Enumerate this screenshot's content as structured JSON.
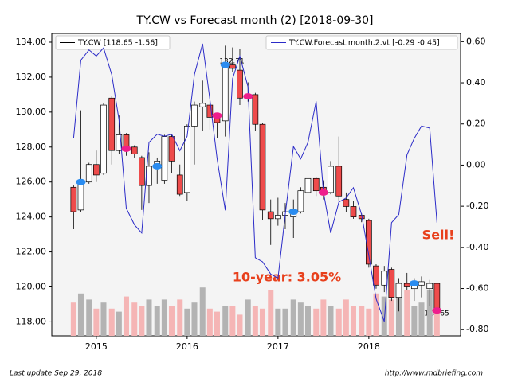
{
  "chart_data": {
    "type": "candlestick",
    "title": "TY.CW vs Forecast month (2)  [2018-09-30]",
    "x": [
      2014.75,
      2014.83,
      2014.92,
      2015,
      2015.08,
      2015.17,
      2015.25,
      2015.33,
      2015.42,
      2015.5,
      2015.58,
      2015.67,
      2015.75,
      2015.83,
      2015.92,
      2016,
      2016.08,
      2016.17,
      2016.25,
      2016.33,
      2016.42,
      2016.5,
      2016.58,
      2016.67,
      2016.75,
      2016.83,
      2016.92,
      2017,
      2017.08,
      2017.17,
      2017.25,
      2017.33,
      2017.42,
      2017.5,
      2017.58,
      2017.67,
      2017.75,
      2017.83,
      2017.92,
      2018,
      2018.08,
      2018.17,
      2018.25,
      2018.33,
      2018.42,
      2018.5,
      2018.58,
      2018.67,
      2018.75
    ],
    "xlim": [
      2014.51,
      2019.01
    ],
    "xticks": [
      2015,
      2016,
      2017,
      2018
    ],
    "ylim": [
      117.2,
      134.5
    ],
    "yticks": [
      {
        "value": 118,
        "label": "118.00"
      },
      {
        "value": 120,
        "label": "120.00"
      },
      {
        "value": 122,
        "label": "122.00"
      },
      {
        "value": 124,
        "label": "124.00"
      },
      {
        "value": 126,
        "label": "126.00"
      },
      {
        "value": 128,
        "label": "128.00"
      },
      {
        "value": 130,
        "label": "130.00"
      },
      {
        "value": 132,
        "label": "132.00"
      },
      {
        "value": 134,
        "label": "134.00"
      }
    ],
    "y2lim": [
      -0.83,
      0.64
    ],
    "y2ticks": [
      {
        "value": 0.6,
        "label": "0.60"
      },
      {
        "value": 0.4,
        "label": "0.40"
      },
      {
        "value": 0.2,
        "label": "0.20"
      },
      {
        "value": 0,
        "label": "0.00"
      },
      {
        "value": -0.2,
        "label": "-0.20"
      },
      {
        "value": -0.4,
        "label": "-0.40"
      },
      {
        "value": -0.6,
        "label": "-0.60"
      },
      {
        "value": -0.8,
        "label": "-0.80"
      }
    ],
    "series": [
      {
        "name": "TY.CW [118.65 -1.56]",
        "color": "#000000",
        "color_up": "#ffffff",
        "color_down": "#ee4b4b",
        "open": [
          125.7,
          124.4,
          126.0,
          127.0,
          126.5,
          130.8,
          127.8,
          128.7,
          128.0,
          127.4,
          125.8,
          126.9,
          126.1,
          128.6,
          126.4,
          125.4,
          129.2,
          130.3,
          130.4,
          129.8,
          129.5,
          132.7,
          132.4,
          130.8,
          131.0,
          129.3,
          124.3,
          123.9,
          124.1,
          124.0,
          124.3,
          125.4,
          126.2,
          125.7,
          125.4,
          126.9,
          125.0,
          124.6,
          124.1,
          123.8,
          121.2,
          120.1,
          121.0,
          119.4,
          120.2,
          119.9,
          120.1,
          119.9,
          120.2
        ],
        "high": [
          125.8,
          130.1,
          127.1,
          127.8,
          130.5,
          130.9,
          129.8,
          128.8,
          128.1,
          127.5,
          127.7,
          127.4,
          128.7,
          128.7,
          127.0,
          129.3,
          130.6,
          131.8,
          130.7,
          129.9,
          133.8,
          133.7,
          133.6,
          131.7,
          131.1,
          129.4,
          125.0,
          125.1,
          124.8,
          125.0,
          125.7,
          126.4,
          126.3,
          126.1,
          127.2,
          128.6,
          125.4,
          124.9,
          124.2,
          123.9,
          121.3,
          121.2,
          121.1,
          120.5,
          120.8,
          120.5,
          120.6,
          120.4,
          120.2
        ],
        "low": [
          123.3,
          124.3,
          125.9,
          126.0,
          126.4,
          127.0,
          127.6,
          127.5,
          127.4,
          124.4,
          124.8,
          125.9,
          125.9,
          126.5,
          125.2,
          124.9,
          127.0,
          128.9,
          129.0,
          128.5,
          128.6,
          132.3,
          130.4,
          130.6,
          128.9,
          123.8,
          122.4,
          123.5,
          123.3,
          122.8,
          124.2,
          125.1,
          125.2,
          125.0,
          125.3,
          124.9,
          124.3,
          123.9,
          123.7,
          121.1,
          119.9,
          119.7,
          119.2,
          118.6,
          119.8,
          119.2,
          119.4,
          118.9,
          118.5
        ],
        "close": [
          124.3,
          126.0,
          127.0,
          126.4,
          130.4,
          127.8,
          128.7,
          127.9,
          127.6,
          125.8,
          126.9,
          127.2,
          128.6,
          127.2,
          125.3,
          129.2,
          130.4,
          130.5,
          129.7,
          129.4,
          132.7,
          132.5,
          130.8,
          130.9,
          129.3,
          124.4,
          123.9,
          124.1,
          124.3,
          124.3,
          125.5,
          126.2,
          125.5,
          125.4,
          126.9,
          125.2,
          124.6,
          124.0,
          123.9,
          121.3,
          120.1,
          120.9,
          119.4,
          120.2,
          120.0,
          120.2,
          120.3,
          120.2,
          118.65
        ]
      },
      {
        "name": "TY.CW.Forecast.month.2.vt [-0.29 -0.45]",
        "color": "#2b2bc8",
        "axis": "y2",
        "values": [
          0.13,
          0.51,
          0.56,
          0.53,
          0.57,
          0.44,
          0.22,
          -0.21,
          -0.29,
          -0.33,
          0.11,
          0.15,
          0.14,
          0.15,
          0.07,
          0.14,
          0.44,
          0.59,
          0.32,
          0.03,
          -0.22,
          0.42,
          0.53,
          0.38,
          -0.45,
          -0.47,
          -0.53,
          -0.55,
          -0.24,
          0.09,
          0.03,
          0.11,
          0.31,
          -0.13,
          -0.33,
          -0.18,
          -0.16,
          -0.11,
          -0.24,
          -0.44,
          -0.65,
          -0.76,
          -0.28,
          -0.24,
          0.05,
          0.13,
          0.19,
          0.18,
          -0.28
        ]
      }
    ],
    "volume": {
      "vlim": [
        0,
        10
      ],
      "color_up": "#b3b3b3",
      "color_down": "#f5b5b5",
      "values": [
        1.1,
        1.4,
        1.2,
        0.9,
        1.1,
        0.9,
        0.8,
        1.3,
        1.1,
        1.0,
        1.2,
        1.0,
        1.2,
        1.0,
        1.2,
        0.9,
        1.1,
        1.6,
        0.9,
        0.8,
        1.0,
        1.0,
        0.7,
        1.2,
        1.0,
        0.9,
        1.5,
        0.9,
        0.9,
        1.2,
        1.1,
        1.0,
        0.9,
        1.2,
        1.0,
        0.9,
        1.2,
        1.0,
        1.0,
        0.9,
        1.4,
        1.3,
        1.2,
        1.6,
        1.5,
        1.0,
        1.1,
        1.5,
        0.9
      ]
    },
    "signals": [
      {
        "x": 2014.83,
        "y": 126.0,
        "color": "#2a8cf0"
      },
      {
        "x": 2015.67,
        "y": 126.9,
        "color": "#2a8cf0"
      },
      {
        "x": 2016.42,
        "y": 132.7,
        "color": "#2a8cf0"
      },
      {
        "x": 2017.17,
        "y": 124.3,
        "color": "#2a8cf0"
      },
      {
        "x": 2018.5,
        "y": 120.2,
        "color": "#2a8cf0"
      },
      {
        "x": 2015.33,
        "y": 127.9,
        "color": "#ee1e8c"
      },
      {
        "x": 2016.33,
        "y": 129.8,
        "color": "#ee1e8c"
      },
      {
        "x": 2016.67,
        "y": 130.9,
        "color": "#ee1e8c"
      },
      {
        "x": 2017.5,
        "y": 125.4,
        "color": "#ee1e8c"
      },
      {
        "x": 2018.75,
        "y": 118.65,
        "color": "#ee1e8c"
      }
    ],
    "annotations": [
      "132.71",
      "118.65",
      "10-year: 3.05%",
      "Sell!"
    ],
    "footer_left": "Last update Sep 29, 2018",
    "footer_right": "http://www.mdbriefing.com"
  }
}
